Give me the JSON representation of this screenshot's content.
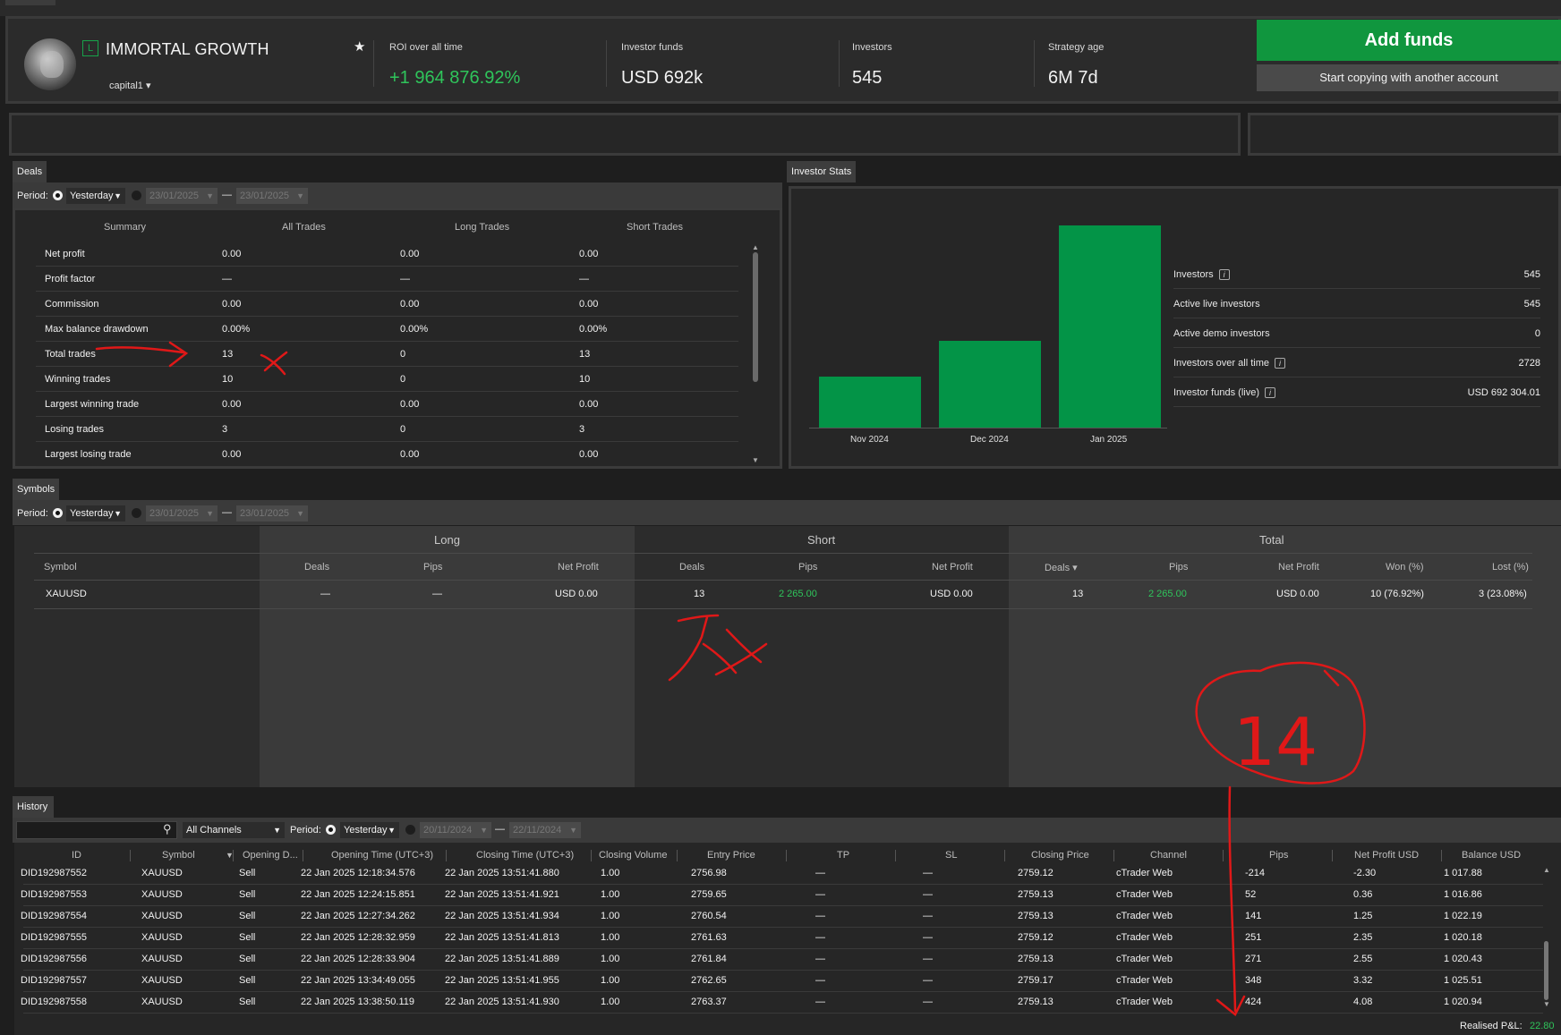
{
  "header": {
    "level_badge": "L",
    "strategy_name": "IMMORTAL GROWTH",
    "provider": "capital1 ▾",
    "stats": [
      {
        "label": "ROI over all time",
        "value": "+1 964 876.92%"
      },
      {
        "label": "Investor funds",
        "value": "USD 692k"
      },
      {
        "label": "Investors",
        "value": "545"
      },
      {
        "label": "Strategy age",
        "value": "6M 7d"
      }
    ],
    "add_funds": "Add funds",
    "copy_another": "Start copying with another account"
  },
  "deals": {
    "tab": "Deals",
    "period_label": "Period:",
    "period_value": "Yesterday",
    "date_from": "23/01/2025",
    "date_to": "23/01/2025",
    "range_dash": "—",
    "columns": [
      "Summary",
      "All Trades",
      "Long Trades",
      "Short Trades"
    ],
    "rows": [
      [
        "Net profit",
        "0.00",
        "0.00",
        "0.00"
      ],
      [
        "Profit factor",
        "—",
        "—",
        "—"
      ],
      [
        "Commission",
        "0.00",
        "0.00",
        "0.00"
      ],
      [
        "Max balance drawdown",
        "0.00%",
        "0.00%",
        "0.00%"
      ],
      [
        "Total trades",
        "13",
        "0",
        "13"
      ],
      [
        "Winning trades",
        "10",
        "0",
        "10"
      ],
      [
        "Largest winning trade",
        "0.00",
        "0.00",
        "0.00"
      ],
      [
        "Losing trades",
        "3",
        "0",
        "3"
      ],
      [
        "Largest losing trade",
        "0.00",
        "0.00",
        "0.00"
      ]
    ]
  },
  "investor_stats": {
    "tab": "Investor Stats",
    "chart_data": {
      "type": "bar",
      "categories": [
        "Nov 2024",
        "Dec 2024",
        "Jan 2025"
      ],
      "values": [
        52,
        89,
        206
      ],
      "ylim": [
        0,
        210
      ]
    },
    "stats": [
      {
        "label": "Investors",
        "info": "i",
        "value": "545"
      },
      {
        "label": "Active live investors",
        "value": "545"
      },
      {
        "label": "Active demo investors",
        "value": "0"
      },
      {
        "label": "Investors over all time",
        "info": "i",
        "value": "2728"
      },
      {
        "label": "Investor funds (live)",
        "info": "i",
        "value": "USD 692 304.01"
      }
    ]
  },
  "symbols": {
    "tab": "Symbols",
    "period_label": "Period:",
    "period_value": "Yesterday",
    "date_from": "23/01/2025",
    "date_to": "23/01/2025",
    "range_dash": "—",
    "groups": [
      "Long",
      "Short",
      "Total"
    ],
    "headers": {
      "symbol": "Symbol",
      "long": [
        "Deals",
        "Pips",
        "Net Profit"
      ],
      "short": [
        "Deals",
        "Pips",
        "Net Profit"
      ],
      "total": [
        "Deals ▾",
        "Pips",
        "Net Profit",
        "Won (%)",
        "Lost (%)"
      ]
    },
    "row": {
      "symbol": "XAUUSD",
      "long": [
        "—",
        "—",
        "USD 0.00"
      ],
      "short": [
        "13",
        "2 265.00",
        "USD 0.00"
      ],
      "total": [
        "13",
        "2 265.00",
        "USD 0.00",
        "10 (76.92%)",
        "3 (23.08%)"
      ]
    }
  },
  "history": {
    "tab": "History",
    "search_placeholder": "",
    "channels": "All Channels",
    "period_label": "Period:",
    "period_value": "Yesterday",
    "date_from": "20/11/2024",
    "date_to": "22/11/2024",
    "range_dash": "—",
    "columns": [
      "ID",
      "Symbol",
      "Opening D...",
      "Opening Time (UTC+3)",
      "Closing Time (UTC+3)",
      "Closing Volume",
      "Entry Price",
      "TP",
      "SL",
      "Closing Price",
      "Channel",
      "Pips",
      "Net Profit USD",
      "Balance USD"
    ],
    "symbol_sort": "▼",
    "rows": [
      {
        "id": "DID192987552",
        "symbol": "XAUUSD",
        "dir": "Sell",
        "open": "22 Jan 2025 12:18:34.576",
        "close": "22 Jan 2025 13:51:41.880",
        "vol": "1.00",
        "entry": "2756.98",
        "tp": "—",
        "sl": "—",
        "cprice": "2759.12",
        "channel": "cTrader Web",
        "pips": "-214",
        "profit": "-2.30",
        "balance": "1 017.88"
      },
      {
        "id": "DID192987553",
        "symbol": "XAUUSD",
        "dir": "Sell",
        "open": "22 Jan 2025 12:24:15.851",
        "close": "22 Jan 2025 13:51:41.921",
        "vol": "1.00",
        "entry": "2759.65",
        "tp": "—",
        "sl": "—",
        "cprice": "2759.13",
        "channel": "cTrader Web",
        "pips": "52",
        "profit": "0.36",
        "balance": "1 016.86"
      },
      {
        "id": "DID192987554",
        "symbol": "XAUUSD",
        "dir": "Sell",
        "open": "22 Jan 2025 12:27:34.262",
        "close": "22 Jan 2025 13:51:41.934",
        "vol": "1.00",
        "entry": "2760.54",
        "tp": "—",
        "sl": "—",
        "cprice": "2759.13",
        "channel": "cTrader Web",
        "pips": "141",
        "profit": "1.25",
        "balance": "1 022.19"
      },
      {
        "id": "DID192987555",
        "symbol": "XAUUSD",
        "dir": "Sell",
        "open": "22 Jan 2025 12:28:32.959",
        "close": "22 Jan 2025 13:51:41.813",
        "vol": "1.00",
        "entry": "2761.63",
        "tp": "—",
        "sl": "—",
        "cprice": "2759.12",
        "channel": "cTrader Web",
        "pips": "251",
        "profit": "2.35",
        "balance": "1 020.18"
      },
      {
        "id": "DID192987556",
        "symbol": "XAUUSD",
        "dir": "Sell",
        "open": "22 Jan 2025 12:28:33.904",
        "close": "22 Jan 2025 13:51:41.889",
        "vol": "1.00",
        "entry": "2761.84",
        "tp": "—",
        "sl": "—",
        "cprice": "2759.13",
        "channel": "cTrader Web",
        "pips": "271",
        "profit": "2.55",
        "balance": "1 020.43"
      },
      {
        "id": "DID192987557",
        "symbol": "XAUUSD",
        "dir": "Sell",
        "open": "22 Jan 2025 13:34:49.055",
        "close": "22 Jan 2025 13:51:41.955",
        "vol": "1.00",
        "entry": "2762.65",
        "tp": "—",
        "sl": "—",
        "cprice": "2759.17",
        "channel": "cTrader Web",
        "pips": "348",
        "profit": "3.32",
        "balance": "1 025.51"
      },
      {
        "id": "DID192987558",
        "symbol": "XAUUSD",
        "dir": "Sell",
        "open": "22 Jan 2025 13:38:50.119",
        "close": "22 Jan 2025 13:51:41.930",
        "vol": "1.00",
        "entry": "2763.37",
        "tp": "—",
        "sl": "—",
        "cprice": "2759.13",
        "channel": "cTrader Web",
        "pips": "424",
        "profit": "4.08",
        "balance": "1 020.94"
      }
    ],
    "realised_label": "Realised P&L:",
    "realised_value": "22.80"
  },
  "annotations": {
    "count_note": "14"
  },
  "colors": {
    "accent_green": "#10963e",
    "bar_green": "#039447",
    "profit_green": "#2fc55b",
    "loss_orange": "#ff7b22",
    "annotation_red": "#e01818"
  }
}
